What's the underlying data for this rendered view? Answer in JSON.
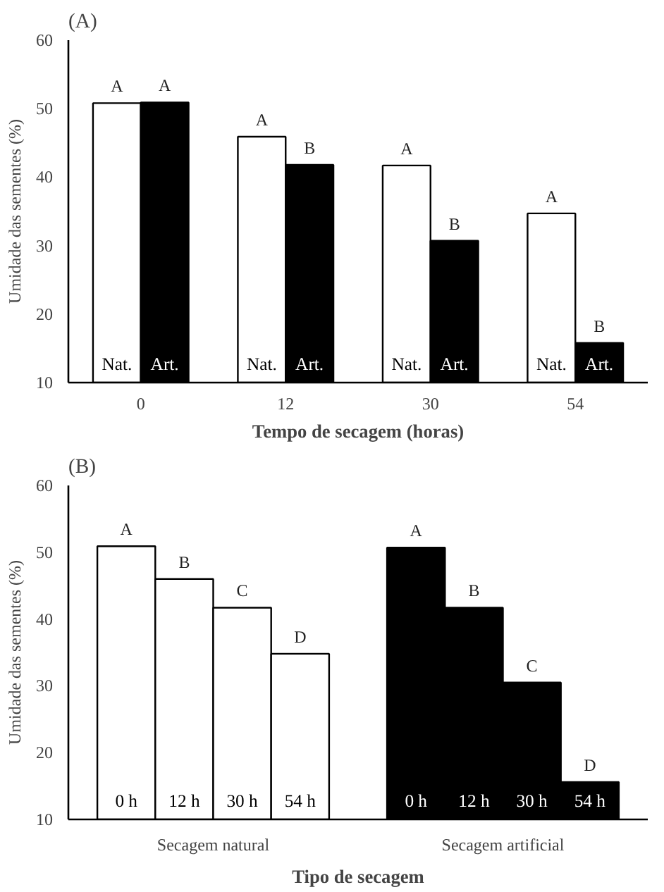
{
  "chart_data": [
    {
      "type": "bar",
      "title": "(A)",
      "xlabel": "Tempo de secagem (horas)",
      "ylabel": "Umidade das sementes (%)",
      "categories": [
        "0",
        "12",
        "30",
        "54"
      ],
      "series": [
        {
          "name": "Nat.",
          "color": "#ffffff",
          "values": [
            50.8,
            45.9,
            41.7,
            34.7
          ],
          "value_labels": [
            "A",
            "A",
            "A",
            "A"
          ]
        },
        {
          "name": "Art.",
          "color": "#000000",
          "values": [
            50.9,
            41.8,
            30.7,
            15.8
          ],
          "value_labels": [
            "A",
            "B",
            "B",
            "B"
          ]
        }
      ],
      "ylim": [
        10,
        60
      ],
      "yticks": [
        10,
        20,
        30,
        40,
        50,
        60
      ],
      "grid": false,
      "legend": false
    },
    {
      "type": "bar",
      "title": "(B)",
      "xlabel": "Tipo de secagem",
      "ylabel": "Umidade das sementes (%)",
      "categories": [
        "Secagem natural",
        "Secagem artificial"
      ],
      "series": [
        {
          "name": "0 h",
          "colors": [
            "#ffffff",
            "#000000"
          ],
          "values": [
            50.9,
            50.7
          ],
          "value_labels": [
            "A",
            "A"
          ]
        },
        {
          "name": "12 h",
          "colors": [
            "#ffffff",
            "#000000"
          ],
          "values": [
            46.0,
            41.7
          ],
          "value_labels": [
            "B",
            "B"
          ]
        },
        {
          "name": "30 h",
          "colors": [
            "#ffffff",
            "#000000"
          ],
          "values": [
            41.7,
            30.5
          ],
          "value_labels": [
            "C",
            "C"
          ]
        },
        {
          "name": "54 h",
          "colors": [
            "#ffffff",
            "#000000"
          ],
          "values": [
            34.8,
            15.6
          ],
          "value_labels": [
            "D",
            "D"
          ]
        }
      ],
      "ylim": [
        10,
        60
      ],
      "yticks": [
        10,
        20,
        30,
        40,
        50,
        60
      ],
      "grid": false,
      "legend": false
    }
  ]
}
